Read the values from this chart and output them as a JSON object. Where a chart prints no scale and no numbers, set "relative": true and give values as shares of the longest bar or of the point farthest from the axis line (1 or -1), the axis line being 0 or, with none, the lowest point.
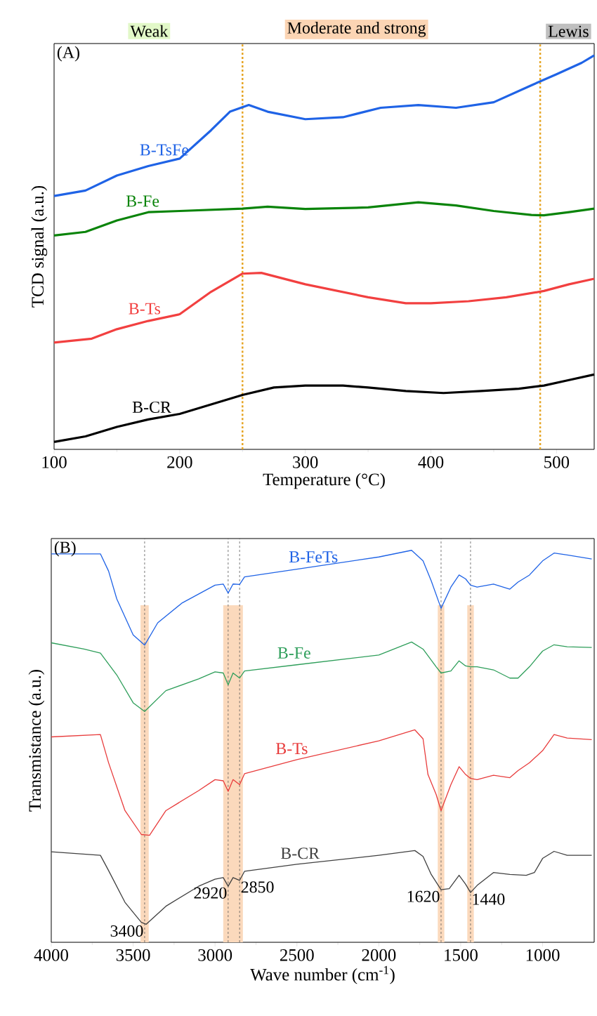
{
  "chart_data": [
    {
      "type": "line",
      "title": "(A)",
      "xlabel": "Temperature (°C)",
      "ylabel": "TCD signal (a.u.)",
      "relative": true,
      "xlim": [
        100,
        530
      ],
      "xticks": [
        100,
        200,
        300,
        400,
        500
      ],
      "grid": false,
      "marker": "none",
      "line_style": "solid",
      "annotations": [
        "Weak",
        "Moderate and strong",
        "Lewis"
      ],
      "ref_lines": [
        {
          "axis": "x",
          "value": 250,
          "color": "#e6a627",
          "line_style": "dashed"
        },
        {
          "axis": "x",
          "value": 487,
          "color": "#e6a627",
          "line_style": "dashed"
        }
      ],
      "series": [
        {
          "name": "B-TsFe",
          "color": "#1f63e6",
          "x": [
            100,
            125,
            150,
            175,
            200,
            225,
            240,
            255,
            270,
            300,
            330,
            360,
            390,
            420,
            450,
            480,
            500,
            520,
            530
          ],
          "values": [
            0.643,
            0.657,
            0.695,
            0.719,
            0.738,
            0.81,
            0.857,
            0.874,
            0.857,
            0.838,
            0.843,
            0.867,
            0.874,
            0.867,
            0.881,
            0.924,
            0.952,
            0.981,
            1.0
          ]
        },
        {
          "name": "B-Fe",
          "color": "#0a840a",
          "x": [
            100,
            125,
            150,
            175,
            200,
            250,
            270,
            300,
            350,
            390,
            420,
            450,
            480,
            490,
            510,
            530
          ],
          "values": [
            0.543,
            0.552,
            0.581,
            0.602,
            0.605,
            0.611,
            0.616,
            0.61,
            0.614,
            0.627,
            0.619,
            0.605,
            0.595,
            0.594,
            0.602,
            0.611
          ]
        },
        {
          "name": "B-Ts",
          "color": "#f24040",
          "x": [
            100,
            130,
            150,
            175,
            200,
            225,
            250,
            265,
            300,
            350,
            380,
            400,
            430,
            460,
            490,
            510,
            530
          ],
          "values": [
            0.271,
            0.281,
            0.305,
            0.326,
            0.343,
            0.4,
            0.446,
            0.448,
            0.419,
            0.386,
            0.371,
            0.371,
            0.376,
            0.386,
            0.402,
            0.419,
            0.433
          ]
        },
        {
          "name": "B-CR",
          "color": "#000000",
          "x": [
            100,
            125,
            150,
            175,
            200,
            225,
            250,
            275,
            300,
            330,
            350,
            380,
            410,
            440,
            470,
            490,
            510,
            530
          ],
          "values": [
            0.019,
            0.033,
            0.057,
            0.076,
            0.09,
            0.114,
            0.138,
            0.157,
            0.162,
            0.162,
            0.157,
            0.148,
            0.143,
            0.148,
            0.154,
            0.162,
            0.176,
            0.19
          ]
        }
      ]
    },
    {
      "type": "line",
      "title": "(B)",
      "xlabel": "Wave number (cm$^{-1}$)",
      "ylabel": "Transmistance (a.u.)",
      "relative": true,
      "xlim": [
        4000,
        685
      ],
      "xticks": [
        4000,
        3500,
        3000,
        2500,
        2000,
        1500,
        1000
      ],
      "grid": false,
      "marker": "none",
      "line_style": "solid",
      "annotations": [
        {
          "text": "3400",
          "x": 3430,
          "y": 0.046
        },
        {
          "text": "2920",
          "x": 2920,
          "y": 0.143
        },
        {
          "text": "2850",
          "x": 2850,
          "y": 0.158
        },
        {
          "text": "1620",
          "x": 1620,
          "y": 0.134
        },
        {
          "text": "1440",
          "x": 1440,
          "y": 0.127
        }
      ],
      "ref_lines": [
        {
          "axis": "x",
          "value": 3430,
          "color": "#555555",
          "line_style": "dashed"
        },
        {
          "axis": "x",
          "value": 2920,
          "color": "#555555",
          "line_style": "dashed"
        },
        {
          "axis": "x",
          "value": 2850,
          "color": "#555555",
          "line_style": "dashed"
        },
        {
          "axis": "x",
          "value": 1620,
          "color": "#555555",
          "line_style": "dashed"
        },
        {
          "axis": "x",
          "value": 1440,
          "color": "#555555",
          "line_style": "dashed"
        }
      ],
      "bands": [
        {
          "axis": "x",
          "from": 3455,
          "to": 3405,
          "color": "#fbd9bc"
        },
        {
          "axis": "x",
          "from": 2950,
          "to": 2830,
          "color": "#fbd9bc"
        },
        {
          "axis": "x",
          "from": 1640,
          "to": 1600,
          "color": "#fbd9bc"
        },
        {
          "axis": "x",
          "from": 1460,
          "to": 1420,
          "color": "#fbd9bc"
        }
      ],
      "series": [
        {
          "name": "B-FeTs",
          "color": "#1f63e6",
          "x": [
            4000,
            3700,
            3650,
            3600,
            3500,
            3430,
            3350,
            3200,
            3000,
            2950,
            2920,
            2890,
            2850,
            2820,
            2500,
            2000,
            1800,
            1730,
            1680,
            1620,
            1560,
            1510,
            1470,
            1440,
            1400,
            1300,
            1200,
            1150,
            1080,
            1000,
            930,
            850,
            700
          ],
          "values": [
            0.991,
            0.991,
            0.947,
            0.876,
            0.784,
            0.758,
            0.815,
            0.866,
            0.911,
            0.914,
            0.891,
            0.914,
            0.913,
            0.932,
            0.952,
            0.983,
            1.0,
            0.973,
            0.922,
            0.852,
            0.906,
            0.937,
            0.927,
            0.911,
            0.906,
            0.914,
            0.901,
            0.919,
            0.937,
            0.973,
            0.993,
            0.988,
            0.978
          ]
        },
        {
          "name": "B-Fe",
          "color": "#2e9e5a",
          "x": [
            4000,
            3800,
            3700,
            3600,
            3500,
            3430,
            3300,
            3100,
            3000,
            2950,
            2920,
            2890,
            2850,
            2820,
            2500,
            2000,
            1800,
            1730,
            1650,
            1620,
            1560,
            1510,
            1470,
            1440,
            1400,
            1300,
            1200,
            1150,
            1080,
            1000,
            930,
            850,
            700
          ],
          "values": [
            0.764,
            0.748,
            0.738,
            0.682,
            0.611,
            0.589,
            0.642,
            0.672,
            0.69,
            0.687,
            0.657,
            0.687,
            0.674,
            0.692,
            0.708,
            0.733,
            0.766,
            0.748,
            0.703,
            0.687,
            0.692,
            0.718,
            0.705,
            0.703,
            0.703,
            0.695,
            0.674,
            0.674,
            0.703,
            0.743,
            0.759,
            0.754,
            0.752
          ]
        },
        {
          "name": "B-Ts",
          "color": "#e83c3c",
          "x": [
            4000,
            3700,
            3650,
            3550,
            3450,
            3400,
            3300,
            3100,
            3000,
            2950,
            2920,
            2890,
            2850,
            2820,
            2500,
            2000,
            1780,
            1730,
            1700,
            1650,
            1620,
            1560,
            1510,
            1470,
            1440,
            1400,
            1300,
            1200,
            1150,
            1080,
            1000,
            930,
            850,
            700
          ],
          "values": [
            0.524,
            0.53,
            0.458,
            0.336,
            0.275,
            0.273,
            0.336,
            0.387,
            0.415,
            0.412,
            0.385,
            0.415,
            0.402,
            0.43,
            0.466,
            0.514,
            0.542,
            0.519,
            0.428,
            0.377,
            0.336,
            0.402,
            0.448,
            0.428,
            0.418,
            0.415,
            0.426,
            0.42,
            0.438,
            0.458,
            0.489,
            0.53,
            0.521,
            0.517
          ]
        },
        {
          "name": "B-CR",
          "color": "#404040",
          "x": [
            4000,
            3700,
            3650,
            3550,
            3450,
            3420,
            3300,
            3100,
            3000,
            2950,
            2920,
            2890,
            2850,
            2820,
            2500,
            2000,
            1780,
            1730,
            1680,
            1620,
            1570,
            1510,
            1470,
            1440,
            1400,
            1300,
            1200,
            1100,
            1050,
            1000,
            930,
            850,
            700
          ],
          "values": [
            0.231,
            0.222,
            0.183,
            0.102,
            0.051,
            0.046,
            0.092,
            0.143,
            0.161,
            0.165,
            0.143,
            0.165,
            0.158,
            0.181,
            0.199,
            0.222,
            0.234,
            0.219,
            0.173,
            0.134,
            0.137,
            0.171,
            0.148,
            0.127,
            0.145,
            0.178,
            0.173,
            0.171,
            0.178,
            0.214,
            0.232,
            0.222,
            0.222
          ]
        }
      ]
    }
  ]
}
